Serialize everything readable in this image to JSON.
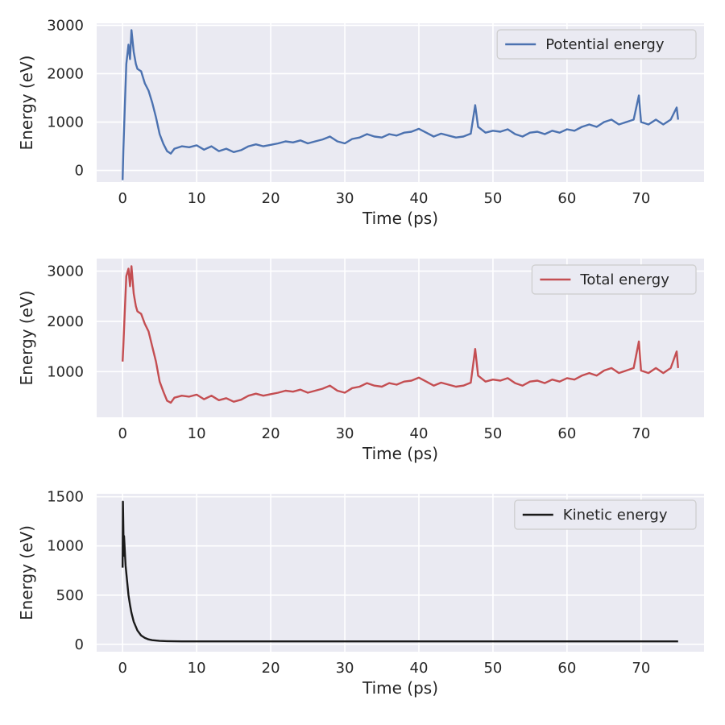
{
  "chart_data": [
    {
      "type": "line",
      "xlabel": "Time (ps)",
      "ylabel": "Energy (eV)",
      "xlim": [
        -3.5,
        78.5
      ],
      "ylim": [
        -240,
        3040
      ],
      "xticks": [
        0,
        10,
        20,
        30,
        40,
        50,
        60,
        70
      ],
      "yticks": [
        0,
        1000,
        2000,
        3000
      ],
      "grid": true,
      "legend_position": "top-right",
      "series": [
        {
          "name": "Potential energy",
          "color": "#4c72b0",
          "x": [
            0,
            0.1,
            0.3,
            0.5,
            0.8,
            1.0,
            1.2,
            1.5,
            1.8,
            2.0,
            2.5,
            3.0,
            3.5,
            4.0,
            4.5,
            5.0,
            5.5,
            6.0,
            6.5,
            7.0,
            8.0,
            9.0,
            10.0,
            11.0,
            12.0,
            13.0,
            14.0,
            15.0,
            16.0,
            17.0,
            18.0,
            19.0,
            20.0,
            21.0,
            22.0,
            23.0,
            24.0,
            25.0,
            26.0,
            27.0,
            28.0,
            29.0,
            30.0,
            31.0,
            32.0,
            33.0,
            34.0,
            35.0,
            36.0,
            37.0,
            38.0,
            39.0,
            40.0,
            41.0,
            42.0,
            43.0,
            44.0,
            45.0,
            46.0,
            47.0,
            47.6,
            48.0,
            49.0,
            50.0,
            51.0,
            52.0,
            53.0,
            54.0,
            55.0,
            56.0,
            57.0,
            58.0,
            59.0,
            60.0,
            61.0,
            62.0,
            63.0,
            64.0,
            65.0,
            66.0,
            67.0,
            68.0,
            69.0,
            69.7,
            70.0,
            71.0,
            72.0,
            73.0,
            74.0,
            74.8,
            75.0
          ],
          "y": [
            -200,
            400,
            1300,
            2200,
            2600,
            2300,
            2900,
            2450,
            2200,
            2100,
            2050,
            1800,
            1650,
            1400,
            1100,
            750,
            550,
            400,
            350,
            450,
            500,
            480,
            520,
            430,
            500,
            400,
            450,
            380,
            420,
            500,
            540,
            500,
            530,
            560,
            600,
            580,
            620,
            560,
            600,
            640,
            700,
            600,
            560,
            650,
            680,
            750,
            700,
            680,
            750,
            720,
            780,
            800,
            860,
            780,
            700,
            760,
            720,
            680,
            700,
            760,
            1350,
            900,
            780,
            820,
            800,
            850,
            750,
            700,
            780,
            800,
            750,
            820,
            780,
            850,
            820,
            900,
            950,
            900,
            1000,
            1050,
            950,
            1000,
            1050,
            1550,
            1000,
            950,
            1050,
            950,
            1050,
            1300,
            1050
          ]
        }
      ]
    },
    {
      "type": "line",
      "xlabel": "Time (ps)",
      "ylabel": "Energy (eV)",
      "xlim": [
        -3.5,
        78.5
      ],
      "ylim": [
        90,
        3250
      ],
      "xticks": [
        0,
        10,
        20,
        30,
        40,
        50,
        60,
        70
      ],
      "yticks": [
        1000,
        2000,
        3000
      ],
      "grid": true,
      "legend_position": "top-right",
      "series": [
        {
          "name": "Total energy",
          "color": "#c44e52",
          "x": [
            0,
            0.1,
            0.3,
            0.5,
            0.8,
            1.0,
            1.2,
            1.5,
            1.8,
            2.0,
            2.5,
            3.0,
            3.5,
            4.0,
            4.5,
            5.0,
            5.5,
            6.0,
            6.5,
            7.0,
            8.0,
            9.0,
            10.0,
            11.0,
            12.0,
            13.0,
            14.0,
            15.0,
            16.0,
            17.0,
            18.0,
            19.0,
            20.0,
            21.0,
            22.0,
            23.0,
            24.0,
            25.0,
            26.0,
            27.0,
            28.0,
            29.0,
            30.0,
            31.0,
            32.0,
            33.0,
            34.0,
            35.0,
            36.0,
            37.0,
            38.0,
            39.0,
            40.0,
            41.0,
            42.0,
            43.0,
            44.0,
            45.0,
            46.0,
            47.0,
            47.6,
            48.0,
            49.0,
            50.0,
            51.0,
            52.0,
            53.0,
            54.0,
            55.0,
            56.0,
            57.0,
            58.0,
            59.0,
            60.0,
            61.0,
            62.0,
            63.0,
            64.0,
            65.0,
            66.0,
            67.0,
            68.0,
            69.0,
            69.7,
            70.0,
            71.0,
            72.0,
            73.0,
            74.0,
            74.8,
            75.0
          ],
          "y": [
            1200,
            1500,
            2200,
            2900,
            3050,
            2700,
            3100,
            2550,
            2300,
            2200,
            2150,
            1950,
            1800,
            1500,
            1200,
            800,
            600,
            420,
            380,
            480,
            520,
            500,
            540,
            450,
            520,
            430,
            470,
            400,
            440,
            520,
            560,
            520,
            550,
            580,
            620,
            600,
            640,
            580,
            620,
            660,
            720,
            620,
            580,
            670,
            700,
            770,
            720,
            700,
            770,
            740,
            800,
            820,
            880,
            800,
            720,
            780,
            740,
            700,
            720,
            780,
            1450,
            920,
            800,
            840,
            820,
            870,
            770,
            720,
            800,
            820,
            770,
            840,
            800,
            870,
            840,
            920,
            970,
            920,
            1020,
            1070,
            970,
            1020,
            1070,
            1600,
            1020,
            970,
            1070,
            970,
            1070,
            1400,
            1070
          ]
        }
      ]
    },
    {
      "type": "line",
      "xlabel": "Time (ps)",
      "ylabel": "Energy (eV)",
      "xlim": [
        -3.5,
        78.5
      ],
      "ylim": [
        -75,
        1530
      ],
      "xticks": [
        0,
        10,
        20,
        30,
        40,
        50,
        60,
        70
      ],
      "yticks": [
        0,
        500,
        1000,
        1500
      ],
      "grid": true,
      "legend_position": "top-right",
      "series": [
        {
          "name": "Kinetic energy",
          "color": "#1a1a1a",
          "x": [
            0,
            0.05,
            0.1,
            0.15,
            0.2,
            0.4,
            0.6,
            0.8,
            1.0,
            1.2,
            1.5,
            2.0,
            2.5,
            3.0,
            3.5,
            4.0,
            5.0,
            6.0,
            8.0,
            10.0,
            20.0,
            30.0,
            40.0,
            50.0,
            60.0,
            70.0,
            75.0
          ],
          "y": [
            780,
            1450,
            1200,
            900,
            1100,
            800,
            650,
            500,
            400,
            320,
            230,
            140,
            90,
            65,
            50,
            42,
            35,
            32,
            30,
            30,
            30,
            30,
            30,
            30,
            30,
            30,
            30
          ]
        }
      ]
    }
  ]
}
